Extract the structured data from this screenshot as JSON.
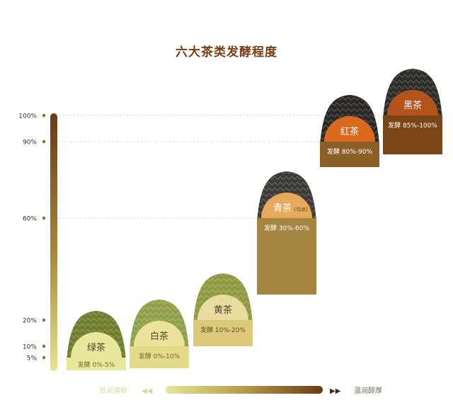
{
  "chart_data": {
    "type": "bar",
    "title": "六大茶类发酵程度",
    "y_ticks": [
      "100%",
      "90%",
      "60%",
      "20%",
      "10%",
      "5%"
    ],
    "y_tick_values": [
      100,
      90,
      60,
      20,
      10,
      5
    ],
    "ylim": [
      0,
      100
    ],
    "grid": "dotted at 100% and 90%",
    "categories": [
      {
        "name": "绿茶",
        "sub": "",
        "label": "发酵 0%-5%",
        "low": 0,
        "high": 5,
        "disc_color": "#e9e79c",
        "box_color": "#e9e79c",
        "label_color": "#6f6c2c",
        "leaf": "#6f7d2e"
      },
      {
        "name": "白茶",
        "sub": "",
        "label": "发酵 0%-10%",
        "low": 0,
        "high": 10,
        "disc_color": "#ece39a",
        "box_color": "#e3da8a",
        "label_color": "#6f6c2c",
        "leaf": "#8fa04a"
      },
      {
        "name": "黄茶",
        "sub": "",
        "label": "发酵 10%-20%",
        "low": 10,
        "high": 20,
        "disc_color": "#eadca1",
        "box_color": "#dcc97a",
        "label_color": "#5e5326",
        "leaf": "#8e9a3f"
      },
      {
        "name": "青茶",
        "sub": "(乌龙)",
        "label": "发酵 30%-60%",
        "low": 30,
        "high": 60,
        "disc_color": "#e7a95b",
        "box_color": "#a5853f",
        "label_color": "#ffffff",
        "leaf": "#3c3b36"
      },
      {
        "name": "红茶",
        "sub": "",
        "label": "发酵 80%-90%",
        "low": 80,
        "high": 90,
        "disc_color": "#d96a1d",
        "box_color": "#8b6028",
        "label_color": "#ffffff",
        "leaf": "#2b2724"
      },
      {
        "name": "黑茶",
        "sub": "",
        "label": "发酵 85%-100%",
        "low": 85,
        "high": 100,
        "disc_color": "#b5531c",
        "box_color": "#7b4515",
        "label_color": "#ffffff",
        "leaf": "#2f2d28"
      }
    ],
    "scale_left_label": "甘润清鲜",
    "scale_right_label": "温润醇厚",
    "colors": {
      "axis_top": "#6b3a14",
      "axis_bottom": "#e7e48e",
      "title": "#7a3d14"
    }
  }
}
